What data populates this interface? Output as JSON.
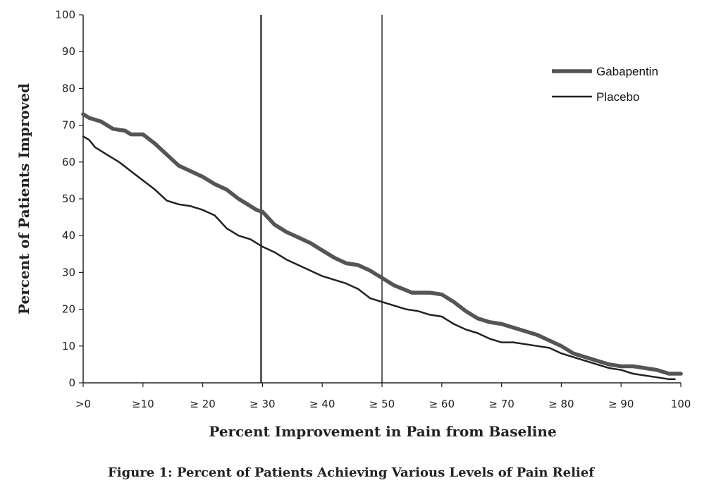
{
  "caption": "Figure 1: Percent of Patients Achieving Various Levels of Pain Relief",
  "chart_data": {
    "type": "line",
    "title": "",
    "xlabel": "Percent Improvement in Pain from Baseline",
    "ylabel": "Percent of Patients Improved",
    "xlim": [
      0,
      100
    ],
    "ylim": [
      0,
      100
    ],
    "x_ticks": [
      0,
      10,
      20,
      30,
      40,
      50,
      60,
      70,
      80,
      90,
      100
    ],
    "x_tick_labels": [
      ">0",
      "≥10",
      "≥ 20",
      "≥ 30",
      "≥ 40",
      "≥ 50",
      "≥ 60",
      "≥ 70",
      "≥ 80",
      "≥ 90",
      "100"
    ],
    "y_ticks": [
      0,
      10,
      20,
      30,
      40,
      50,
      60,
      70,
      80,
      90,
      100
    ],
    "grid": false,
    "legend_position": "top-right",
    "reference_lines_x": [
      30,
      50
    ],
    "series": [
      {
        "name": "Gabapentin",
        "color": "#555555",
        "x": [
          0,
          1,
          3,
          5,
          7,
          8,
          10,
          12,
          14,
          16,
          18,
          20,
          22,
          24,
          26,
          28,
          29,
          30,
          32,
          34,
          36,
          38,
          40,
          42,
          44,
          46,
          48,
          50,
          52,
          55,
          58,
          60,
          62,
          64,
          66,
          68,
          70,
          72,
          74,
          76,
          78,
          80,
          82,
          84,
          86,
          88,
          90,
          92,
          94,
          96,
          98,
          100
        ],
        "y": [
          73,
          72,
          71,
          69,
          68.5,
          67.5,
          67.5,
          65,
          62,
          59,
          57.5,
          56,
          54,
          52.5,
          50,
          48,
          47,
          46.5,
          43,
          41,
          39.5,
          38,
          36,
          34,
          32.5,
          32,
          30.5,
          28.5,
          26.5,
          24.5,
          24.5,
          24,
          22,
          19.5,
          17.5,
          16.5,
          16,
          15,
          14,
          13,
          11.5,
          10,
          8,
          7,
          6,
          5,
          4.5,
          4.5,
          4,
          3.5,
          2.5,
          2.5
        ]
      },
      {
        "name": "Placebo",
        "color": "#222222",
        "x": [
          0,
          1,
          2,
          4,
          6,
          8,
          10,
          12,
          14,
          16,
          18,
          20,
          22,
          24,
          26,
          28,
          30,
          32,
          34,
          36,
          38,
          40,
          42,
          44,
          46,
          48,
          50,
          52,
          54,
          56,
          58,
          60,
          62,
          64,
          66,
          68,
          70,
          72,
          74,
          76,
          78,
          80,
          82,
          84,
          86,
          88,
          90,
          92,
          94,
          96,
          98,
          99
        ],
        "y": [
          67,
          66,
          64,
          62,
          60,
          57.5,
          55,
          52.5,
          49.5,
          48.5,
          48,
          47,
          45.5,
          42,
          40,
          39,
          37,
          35.5,
          33.5,
          32,
          30.5,
          29,
          28,
          27,
          25.5,
          23,
          22,
          21,
          20,
          19.5,
          18.5,
          18,
          16,
          14.5,
          13.5,
          12,
          11,
          11,
          10.5,
          10,
          9.5,
          8,
          7,
          6,
          5,
          4,
          3.5,
          2.5,
          2,
          1.5,
          1,
          1
        ]
      }
    ]
  }
}
